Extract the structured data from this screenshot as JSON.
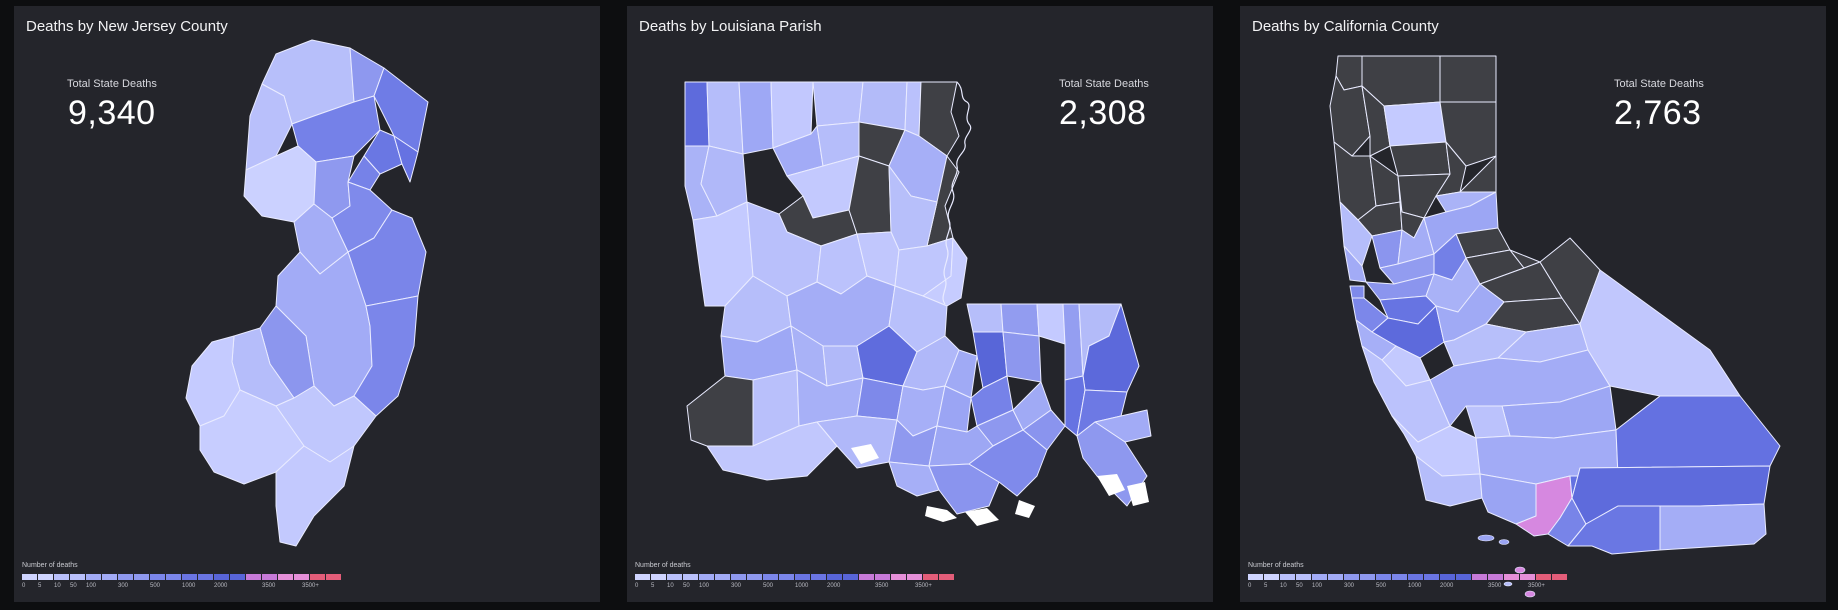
{
  "panels": [
    {
      "title": "Deaths by New Jersey County",
      "total_label": "Total State Deaths",
      "total_value": "9,340"
    },
    {
      "title": "Deaths by Louisiana Parish",
      "total_label": "Total State Deaths",
      "total_value": "2,308"
    },
    {
      "title": "Deaths by California County",
      "total_label": "Total State Deaths",
      "total_value": "2,763"
    }
  ],
  "legend": {
    "title": "Number of deaths",
    "ticks": [
      "0",
      "5",
      "10",
      "50",
      "100",
      "300",
      "500",
      "1000",
      "2000",
      "3500",
      "3500+"
    ]
  },
  "colors": {
    "background": "#0d0e10",
    "panel": "#24252b",
    "no_data": "#3f4045",
    "scale": [
      "#cfd4ff",
      "#b9c0fb",
      "#a2abf6",
      "#8f99ef",
      "#7b86ea",
      "#6a75e3",
      "#5865d8",
      "#c77ad8",
      "#e58fd8",
      "#e35d79"
    ]
  }
}
